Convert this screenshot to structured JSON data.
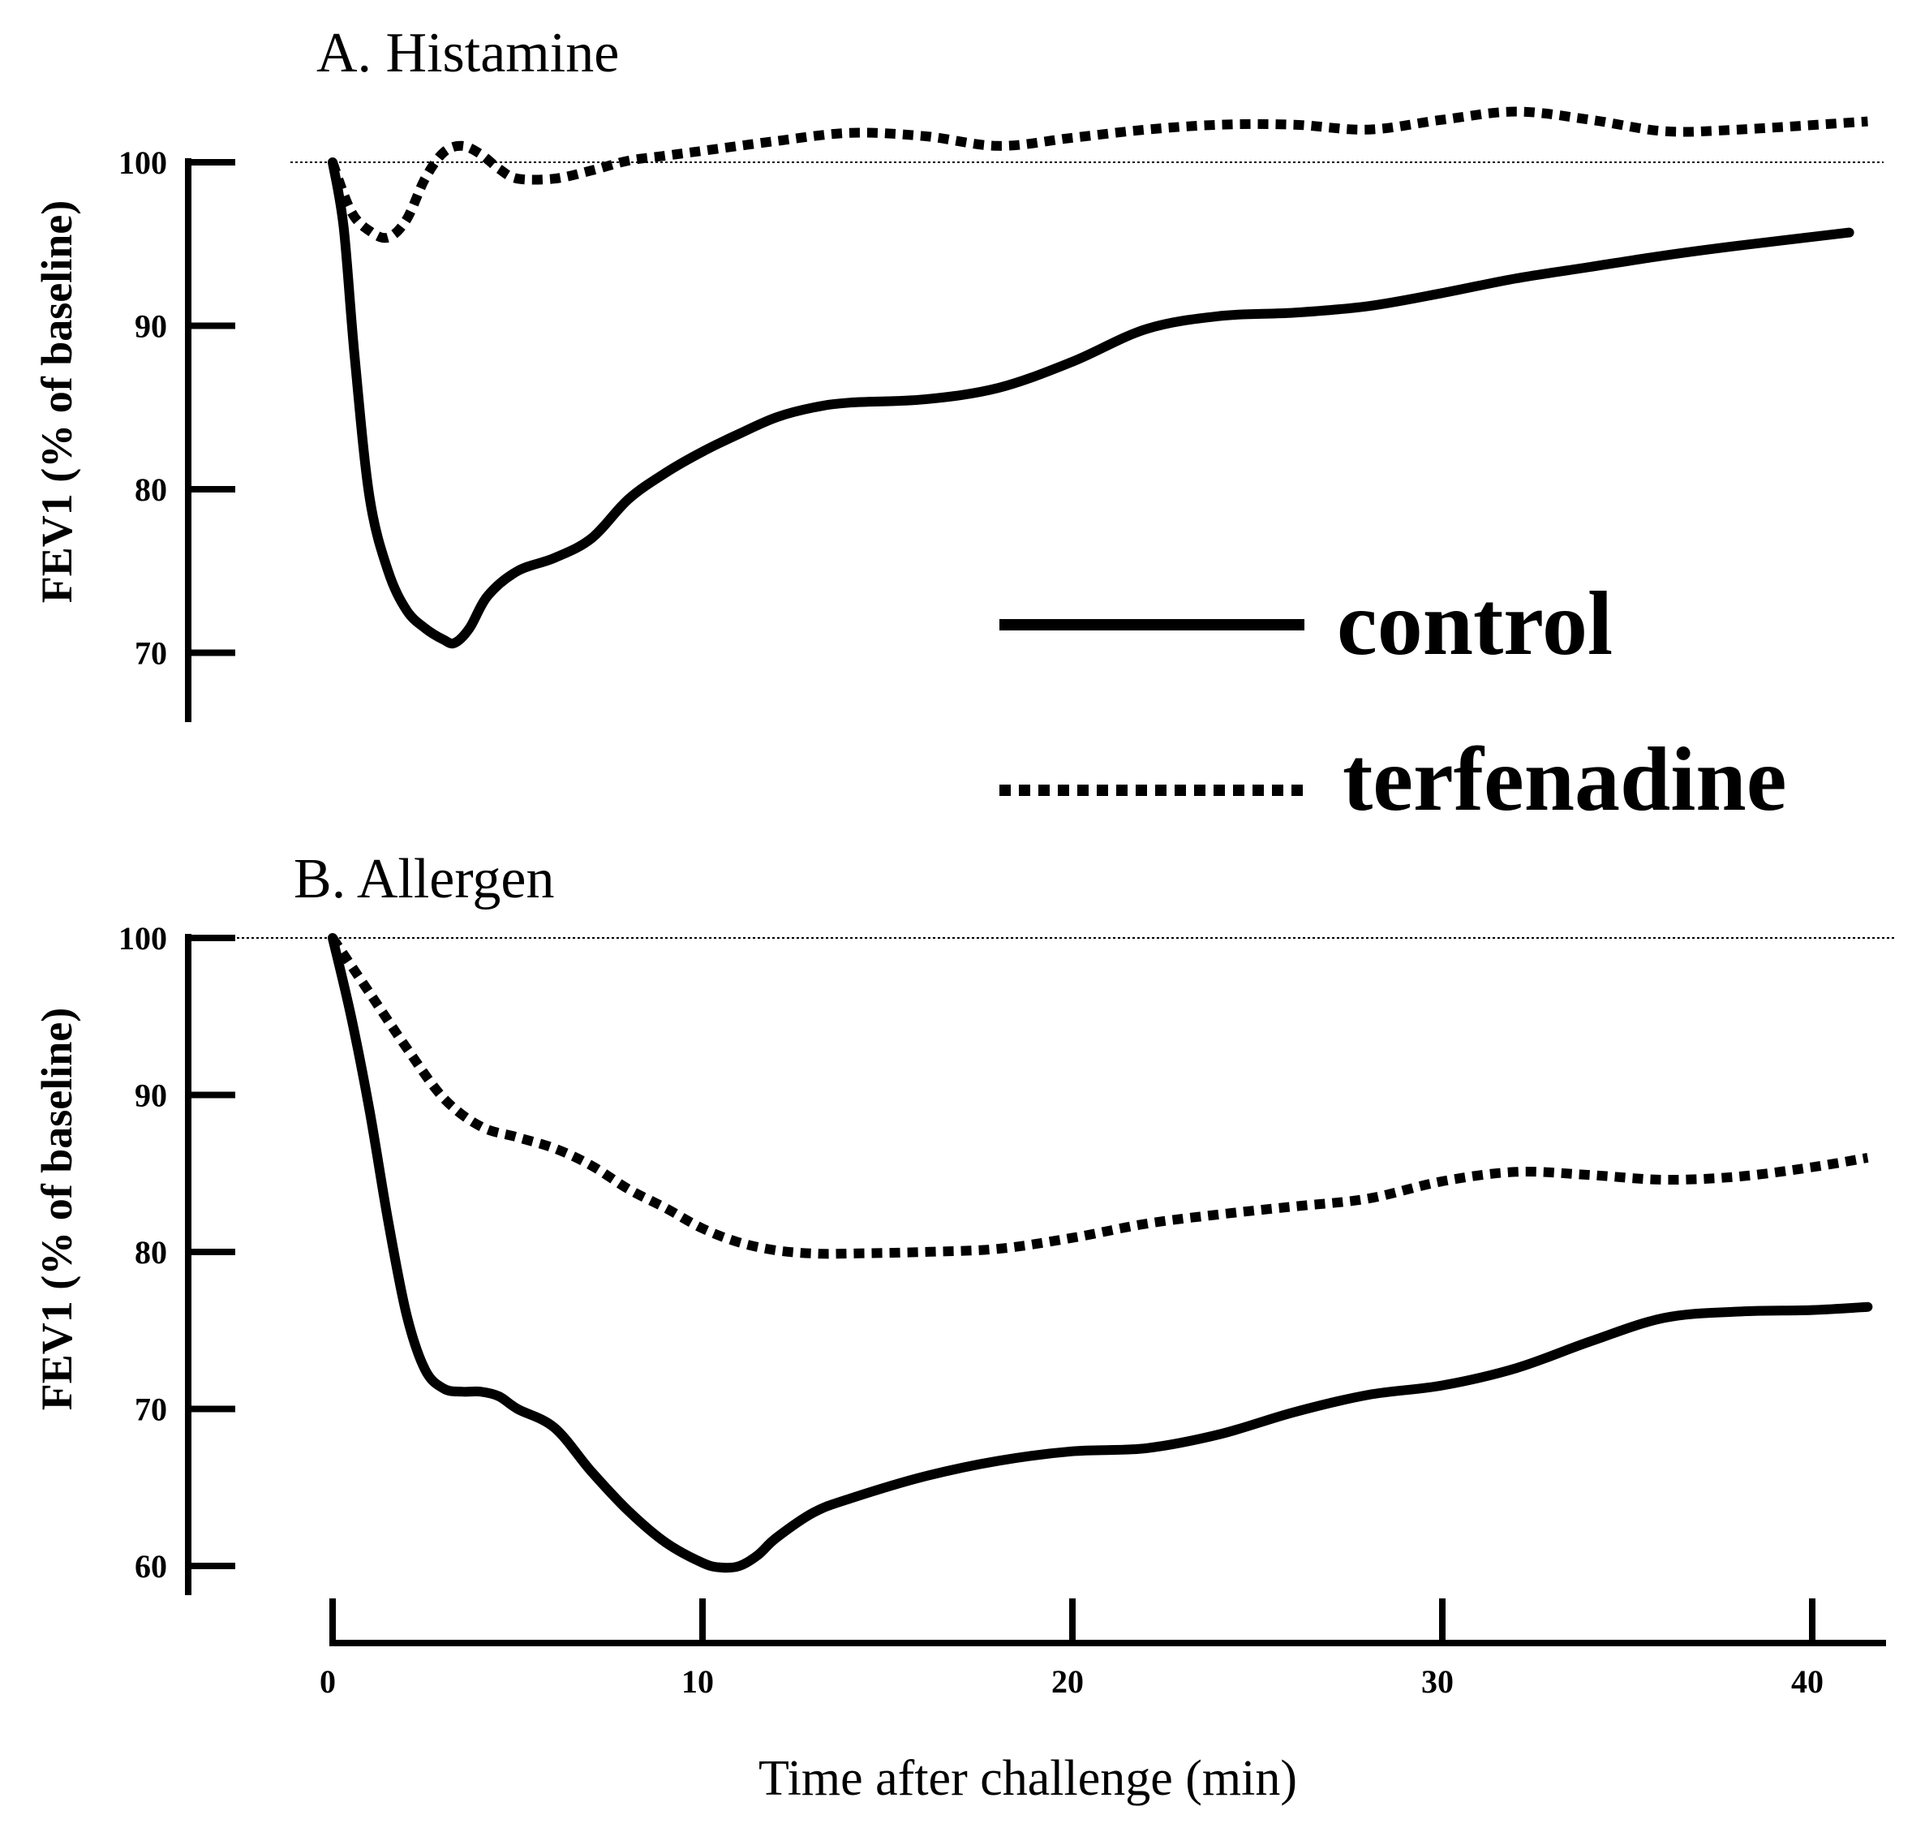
{
  "chart_data": [
    {
      "type": "line",
      "title": "A. Histamine",
      "ylabel": "FEV1 (% of baseline)",
      "xlabel": "",
      "ylim": [
        66,
        102
      ],
      "xlim": [
        0,
        42
      ],
      "yticks": [
        "100",
        "90",
        "80",
        "70"
      ],
      "reference_line": 100,
      "series": [
        {
          "name": "control",
          "style": "solid",
          "x": [
            0.0,
            0.3,
            0.6,
            1.0,
            1.5,
            2.0,
            2.5,
            3.0,
            3.3,
            3.7,
            4.2,
            5.0,
            6.0,
            7.0,
            8.0,
            9.0,
            10.0,
            11.0,
            12.0,
            13.0,
            14.0,
            16.0,
            18.0,
            20.0,
            22.0,
            24.0,
            26.0,
            28.0,
            30.0,
            32.0,
            34.0,
            36.0,
            38.0,
            41.0
          ],
          "y": [
            100.0,
            96.0,
            88.0,
            79.5,
            75.0,
            72.6,
            71.5,
            70.8,
            70.6,
            71.5,
            73.5,
            75.0,
            75.8,
            77.0,
            79.4,
            81.0,
            82.3,
            83.4,
            84.4,
            85.0,
            85.3,
            85.5,
            86.2,
            87.8,
            89.8,
            90.6,
            90.8,
            91.2,
            92.0,
            92.9,
            93.6,
            94.3,
            94.9,
            95.7
          ]
        },
        {
          "name": "terfenadine",
          "style": "dotted",
          "x": [
            0.0,
            0.5,
            1.0,
            1.5,
            2.0,
            2.5,
            3.0,
            3.5,
            4.0,
            4.5,
            5.0,
            6.0,
            7.0,
            8.0,
            9.0,
            10.0,
            12.0,
            14.0,
            16.0,
            18.0,
            20.0,
            22.0,
            24.0,
            26.0,
            28.0,
            30.0,
            32.0,
            34.0,
            36.0,
            38.0,
            41.5
          ],
          "y": [
            100.0,
            97.0,
            95.8,
            95.4,
            96.5,
            99.0,
            100.6,
            101.0,
            100.5,
            99.6,
            99.0,
            99.0,
            99.5,
            100.1,
            100.4,
            100.7,
            101.3,
            101.8,
            101.6,
            101.0,
            101.5,
            102.0,
            102.3,
            102.3,
            102.0,
            102.6,
            103.1,
            102.6,
            101.9,
            102.0,
            102.5
          ]
        }
      ]
    },
    {
      "type": "line",
      "title": "B. Allergen",
      "ylabel": "FEV1 (% of baseline)",
      "xlabel": "Time after challenge (min)",
      "ylim": [
        57,
        100
      ],
      "xlim": [
        0,
        42
      ],
      "yticks": [
        "100",
        "90",
        "80",
        "70",
        "60"
      ],
      "xticks": [
        "0",
        "10",
        "20",
        "30",
        "40"
      ],
      "reference_line": 100,
      "series": [
        {
          "name": "control",
          "style": "solid",
          "x": [
            0.0,
            0.5,
            1.0,
            1.5,
            2.0,
            2.5,
            3.0,
            3.5,
            4.0,
            4.5,
            5.0,
            6.0,
            7.0,
            8.0,
            9.0,
            10.0,
            10.5,
            11.0,
            11.5,
            12.0,
            13.0,
            14.0,
            16.0,
            18.0,
            20.0,
            22.0,
            24.0,
            26.0,
            28.0,
            30.0,
            32.0,
            34.0,
            36.0,
            38.0,
            40.0,
            41.5
          ],
          "y": [
            100.0,
            95.0,
            89.0,
            82.0,
            76.0,
            72.5,
            71.3,
            71.1,
            71.1,
            70.8,
            70.0,
            68.8,
            66.0,
            63.5,
            61.5,
            60.2,
            59.9,
            60.0,
            60.7,
            61.8,
            63.4,
            64.3,
            65.7,
            66.7,
            67.3,
            67.5,
            68.4,
            69.8,
            70.9,
            71.5,
            72.6,
            74.3,
            75.8,
            76.2,
            76.3,
            76.5
          ]
        },
        {
          "name": "terfenadine",
          "style": "dotted",
          "x": [
            0.0,
            1.0,
            2.0,
            3.0,
            4.0,
            5.0,
            6.0,
            7.0,
            8.0,
            9.0,
            10.0,
            11.0,
            12.0,
            13.0,
            14.0,
            16.0,
            18.0,
            20.0,
            22.0,
            24.0,
            26.0,
            28.0,
            30.0,
            32.0,
            34.0,
            36.0,
            38.0,
            40.0,
            41.5
          ],
          "y": [
            100.0,
            96.5,
            93.0,
            89.8,
            88.0,
            87.3,
            86.6,
            85.5,
            84.0,
            82.8,
            81.5,
            80.6,
            80.1,
            79.9,
            79.9,
            80.0,
            80.2,
            80.9,
            81.8,
            82.4,
            82.9,
            83.4,
            84.5,
            85.1,
            84.9,
            84.6,
            84.8,
            85.4,
            86.0
          ]
        }
      ]
    }
  ]
}
